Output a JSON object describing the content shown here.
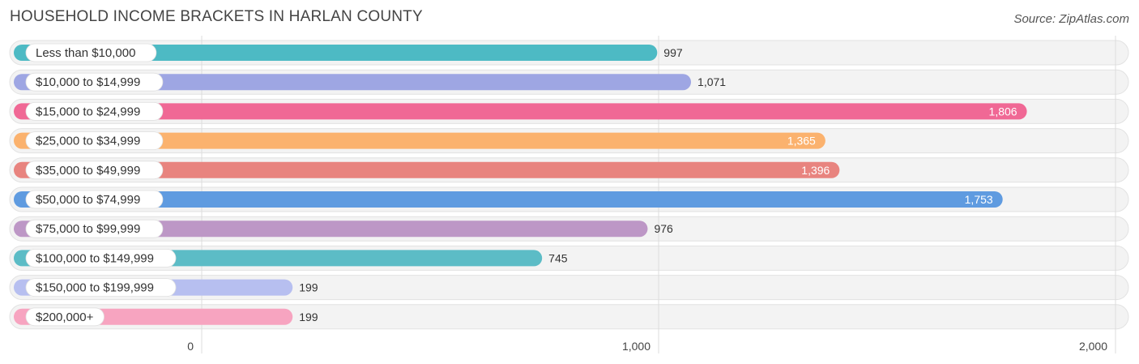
{
  "title": "HOUSEHOLD INCOME BRACKETS IN HARLAN COUNTY",
  "source": "Source: ZipAtlas.com",
  "chart_data": {
    "type": "bar",
    "orientation": "horizontal",
    "categories": [
      "Less than $10,000",
      "$10,000 to $14,999",
      "$15,000 to $24,999",
      "$25,000 to $34,999",
      "$35,000 to $49,999",
      "$50,000 to $74,999",
      "$75,000 to $99,999",
      "$100,000 to $149,999",
      "$150,000 to $199,999",
      "$200,000+"
    ],
    "values": [
      997,
      1071,
      1806,
      1365,
      1396,
      1753,
      976,
      745,
      199,
      199
    ],
    "value_labels": [
      "997",
      "1,071",
      "1,806",
      "1,365",
      "1,396",
      "1,753",
      "976",
      "745",
      "199",
      "199"
    ],
    "colors": [
      "#4dbac4",
      "#9ea6e3",
      "#f06895",
      "#fbb26e",
      "#e8847f",
      "#5f9be0",
      "#bd97c6",
      "#5cbcc6",
      "#b7bff0",
      "#f7a4c0"
    ],
    "xlim": [
      0,
      2000
    ],
    "xticks": [
      0,
      1000,
      2000
    ],
    "xtick_labels": [
      "0",
      "1,000",
      "2,000"
    ],
    "grid": true
  }
}
